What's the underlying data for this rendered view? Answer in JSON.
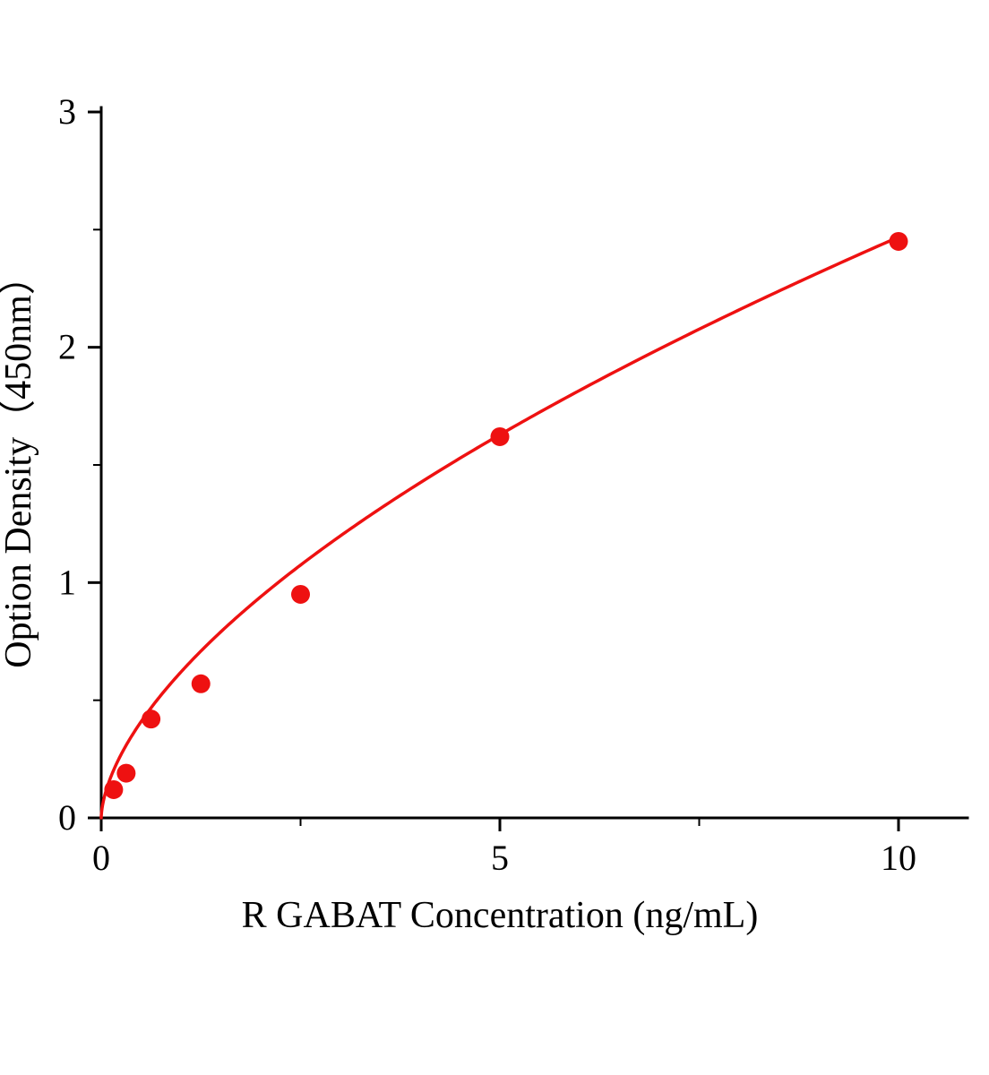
{
  "chart_data": {
    "type": "scatter",
    "title": "",
    "xlabel": "R GABAT Concentration (ng/mL)",
    "ylabel": "Option Density（450nm）",
    "x": [
      0.156,
      0.313,
      0.625,
      1.25,
      2.5,
      5,
      10
    ],
    "y": [
      0.12,
      0.19,
      0.42,
      0.57,
      0.95,
      1.62,
      2.45
    ],
    "fit": {
      "type": "power",
      "a": 0.62,
      "b": 0.6
    },
    "xlim": [
      0,
      10.87
    ],
    "ylim": [
      0,
      3
    ],
    "x_ticks": [
      0,
      5,
      10
    ],
    "x_tick_labels": [
      "0",
      "5",
      "10"
    ],
    "x_minor_ticks": [
      2.5,
      7.5
    ],
    "y_ticks": [
      0,
      1,
      2,
      3
    ],
    "y_tick_labels": [
      "0",
      "1",
      "2",
      "3"
    ],
    "y_minor_ticks": [
      0.5,
      1.5,
      2.5
    ],
    "grid": false,
    "legend": null,
    "point_color": "#ee1111",
    "line_color": "#ee1111",
    "axis_color": "#000000"
  }
}
